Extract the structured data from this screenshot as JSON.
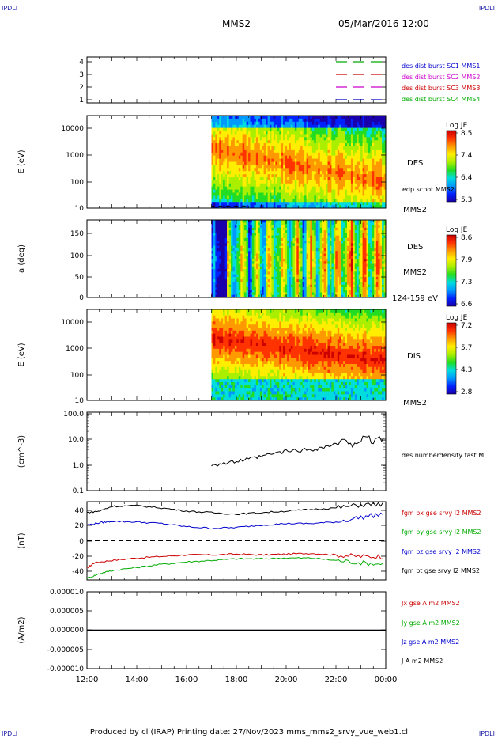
{
  "corner_tags": [
    "IPDLI",
    "IPDLI",
    "IPDLI",
    "IPDLI"
  ],
  "header": {
    "spacecraft": "MMS2",
    "datetime": "05/Mar/2016 12:00"
  },
  "footer": "Produced by cl (IRAP)   Printing date: 27/Nov/2023   mms_mms2_srvy_vue_web1.cl",
  "colors": {
    "mms1": "#0000cc",
    "mms2": "#cc00cc",
    "mms3": "#cc0000",
    "mms4": "#00aa00"
  },
  "chart_data": [
    {
      "type": "line",
      "panel": "burst-availability",
      "yticks": [
        "4",
        "3",
        "2",
        "1"
      ],
      "series": [
        {
          "name": "des dist burst SC1 MMS1",
          "color": "#0000cc",
          "level": 1
        },
        {
          "name": "des dist burst SC2 MMS2",
          "color": "#cc00cc",
          "level": 2
        },
        {
          "name": "des dist burst SC3 MMS3",
          "color": "#cc0000",
          "level": 3
        },
        {
          "name": "des dist burst SC4 MMS4",
          "color": "#00aa00",
          "level": 4
        }
      ],
      "segments_hours": [
        [
          22.0,
          24.0
        ]
      ]
    },
    {
      "type": "heatmap",
      "panel": "des-energy",
      "ylabel": "E (eV)",
      "yticks": [
        "10000",
        "1000",
        "100",
        "10"
      ],
      "colorbar": {
        "title": "Log JE",
        "ticks": [
          "8.5",
          "7.4",
          "6.4",
          "5.3"
        ],
        "range": [
          5.3,
          8.5
        ]
      },
      "labels": [
        "DES",
        "edp scpot MMS2",
        "MMS2"
      ],
      "data_start_hour": 17.0
    },
    {
      "type": "heatmap",
      "panel": "des-pitch-angle",
      "ylabel": "a (deg)",
      "yticks": [
        "150",
        "100",
        "50",
        "0"
      ],
      "colorbar": {
        "title": "Log JE",
        "ticks": [
          "8.6",
          "7.9",
          "7.3",
          "6.6"
        ],
        "range": [
          6.6,
          8.6
        ]
      },
      "labels": [
        "DES",
        "MMS2",
        "124-159 eV"
      ],
      "data_start_hour": 17.0
    },
    {
      "type": "heatmap",
      "panel": "dis-energy",
      "ylabel": "E (eV)",
      "yticks": [
        "10000",
        "1000",
        "100",
        "10"
      ],
      "colorbar": {
        "title": "Log JE",
        "ticks": [
          "7.2",
          "5.7",
          "4.3",
          "2.8"
        ],
        "range": [
          2.8,
          7.2
        ]
      },
      "labels": [
        "DIS",
        "MMS2"
      ],
      "data_start_hour": 17.0
    },
    {
      "type": "line",
      "panel": "density",
      "ylabel": "(cm^-3)",
      "yticks": [
        "100.0",
        "10.0",
        "1.0",
        "0.1"
      ],
      "ylim": [
        0.1,
        100
      ],
      "yscale": "log",
      "series": [
        {
          "name": "des numberdensity fast M",
          "color": "#000000",
          "x_hours": [
            17.0,
            17.5,
            18.0,
            18.5,
            19.0,
            19.5,
            20.0,
            20.5,
            21.0,
            21.5,
            22.0,
            22.5,
            23.0,
            23.5,
            24.0
          ],
          "values": [
            1.0,
            1.1,
            1.3,
            1.6,
            2.0,
            2.6,
            3.2,
            3.5,
            3.7,
            4.5,
            6.0,
            7.5,
            8.5,
            9.0,
            9.5
          ]
        }
      ]
    },
    {
      "type": "line",
      "panel": "magnetic-field",
      "ylabel": "(nT)",
      "yticks": [
        "40",
        "20",
        "0",
        "-20",
        "-40"
      ],
      "ylim": [
        -50,
        50
      ],
      "series": [
        {
          "name": "fgm bx gse srvy l2 MMS2",
          "color": "#cc0000",
          "x_hours": [
            12.0,
            12.3,
            13.0,
            14.0,
            15.0,
            16.0,
            17.0,
            18.0,
            19.0,
            20.0,
            21.0,
            22.0,
            23.0,
            24.0
          ],
          "values": [
            -35,
            -28,
            -25,
            -22,
            -20,
            -18,
            -18,
            -17,
            -18,
            -17,
            -16,
            -18,
            -20,
            -20
          ]
        },
        {
          "name": "fgm by gse srvy l2 MMS2",
          "color": "#00aa00",
          "x_hours": [
            12.0,
            12.5,
            13.0,
            14.0,
            15.0,
            16.0,
            17.0,
            18.0,
            19.0,
            20.0,
            21.0,
            22.0,
            23.0,
            24.0
          ],
          "values": [
            -48,
            -42,
            -38,
            -34,
            -30,
            -27,
            -25,
            -23,
            -23,
            -22,
            -22,
            -25,
            -28,
            -30
          ]
        },
        {
          "name": "fgm bz gse srvy l2 MMS2",
          "color": "#0000cc",
          "x_hours": [
            12.0,
            12.5,
            13.0,
            14.0,
            15.0,
            16.0,
            17.0,
            18.0,
            19.0,
            20.0,
            21.0,
            22.0,
            23.0,
            24.0
          ],
          "values": [
            20,
            23,
            25,
            24,
            22,
            18,
            16,
            17,
            20,
            22,
            22,
            24,
            30,
            35
          ]
        },
        {
          "name": "fgm bt gse srvy l2 MMS2",
          "color": "#000000",
          "x_hours": [
            12.0,
            12.5,
            13.0,
            14.0,
            15.0,
            16.0,
            17.0,
            18.0,
            19.0,
            20.0,
            21.0,
            22.0,
            23.0,
            24.0
          ],
          "values": [
            36,
            38,
            44,
            45,
            42,
            38,
            36,
            34,
            36,
            38,
            40,
            42,
            46,
            47
          ]
        }
      ]
    },
    {
      "type": "line",
      "panel": "current-density",
      "ylabel": "(A/m2)",
      "yticks": [
        "0.000010",
        "0.000005",
        "0.000000",
        "-0.000005",
        "-0.000010"
      ],
      "ylim": [
        -1e-05,
        1e-05
      ],
      "series": [
        {
          "name": "Jx gse A m2 MMS2",
          "color": "#cc0000",
          "x_hours": [
            12,
            24
          ],
          "values": [
            0,
            0
          ]
        },
        {
          "name": "Jy gse A m2 MMS2",
          "color": "#00aa00",
          "x_hours": [
            12,
            24
          ],
          "values": [
            0,
            0
          ]
        },
        {
          "name": "Jz gse A m2 MMS2",
          "color": "#0000cc",
          "x_hours": [
            12,
            24
          ],
          "values": [
            0,
            0
          ]
        },
        {
          "name": "J A m2 MMS2",
          "color": "#000000",
          "x_hours": [
            12,
            24
          ],
          "values": [
            0,
            0
          ]
        }
      ]
    }
  ],
  "xaxis": {
    "ticks": [
      "12:00",
      "14:00",
      "16:00",
      "18:00",
      "20:00",
      "22:00",
      "00:00"
    ],
    "range_hours": [
      12,
      24
    ]
  }
}
